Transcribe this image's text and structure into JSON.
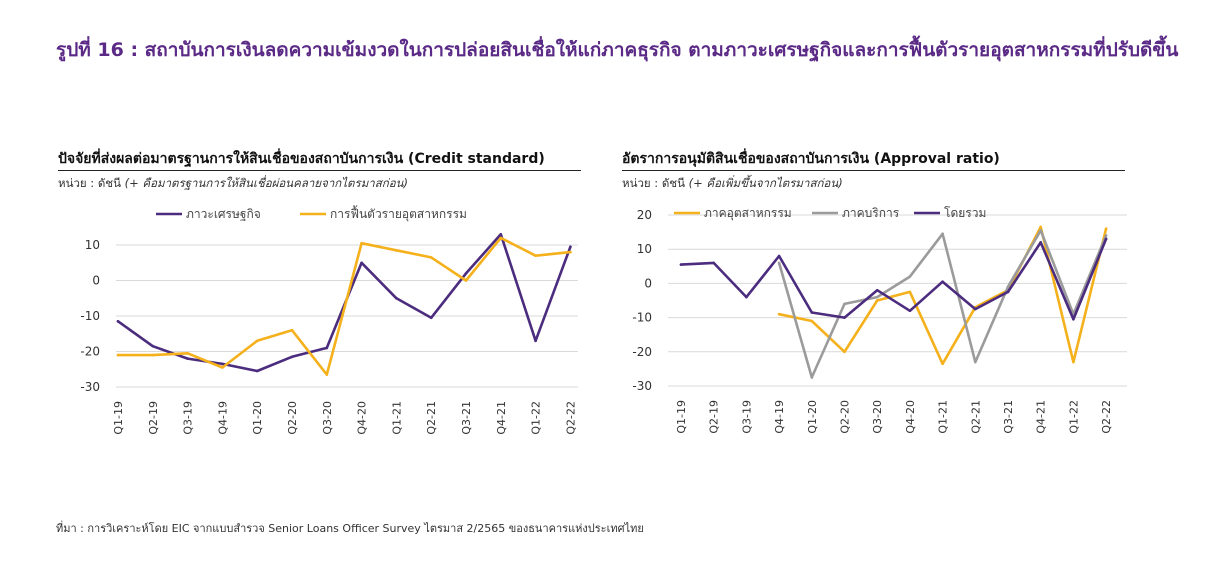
{
  "figure": {
    "title": "รูปที่ 16 : สถาบันการเงินลดความเข้มงวดในการปล่อยสินเชื่อให้แก่ภาคธุรกิจ ตามภาวะเศรษฐกิจและการฟื้นตัวรายอุตสาหกรรมที่ปรับดีขึ้น",
    "source": "ที่มา : การวิเคราะห์โดย EIC จากแบบสำรวจ Senior Loans Officer Survey ไตรมาส 2/2565 ของธนาคารแห่งประเทศไทย"
  },
  "colors": {
    "purple": "#4b2c7e",
    "orange": "#f5b11b",
    "gray": "#9b9b9b",
    "title": "#5b2a86",
    "grid": "#d9d9d9"
  },
  "chart_data": [
    {
      "type": "line",
      "title": "ปัจจัยที่ส่งผลต่อมาตรฐานการให้สินเชื่อของสถาบันการเงิน (Credit standard)",
      "unit": "หน่วย : ดัชนี",
      "note": "(+ คือมาตรฐานการให้สินเชื่อผ่อนคลายจากไตรมาสก่อน)",
      "categories": [
        "Q1-19",
        "Q2-19",
        "Q3-19",
        "Q4-19",
        "Q1-20",
        "Q2-20",
        "Q3-20",
        "Q4-20",
        "Q1-21",
        "Q2-21",
        "Q3-21",
        "Q4-21",
        "Q1-22",
        "Q2-22"
      ],
      "ylim": [
        -30,
        10
      ],
      "yticks": [
        10,
        0,
        -10,
        -20,
        -30
      ],
      "grid": "horizontal",
      "legend": "top",
      "series": [
        {
          "name": "ภาวะเศรษฐกิจ",
          "color": "#4b2c7e",
          "values": [
            -11.5,
            -18.5,
            -22,
            -23.5,
            -25.5,
            -21.5,
            -19,
            5,
            -5,
            -10.5,
            2,
            13,
            -17,
            9.5
          ]
        },
        {
          "name": "การฟื้นตัวรายอุตสาหกรรม",
          "color": "#f5b11b",
          "values": [
            -21,
            -21,
            -20.5,
            -24.5,
            -17,
            -14,
            -26.5,
            10.5,
            8.5,
            6.5,
            0,
            12,
            7,
            8
          ]
        }
      ]
    },
    {
      "type": "line",
      "title": "อัตราการอนุมัติสินเชื่อของสถาบันการเงิน (Approval ratio)",
      "unit": "หน่วย : ดัชนี",
      "note": "(+ คือเพิ่มขึ้นจากไตรมาสก่อน)",
      "categories": [
        "Q1-19",
        "Q2-19",
        "Q3-19",
        "Q4-19",
        "Q1-20",
        "Q2-20",
        "Q3-20",
        "Q4-20",
        "Q1-21",
        "Q2-21",
        "Q3-21",
        "Q4-21",
        "Q1-22",
        "Q2-22"
      ],
      "ylim": [
        -30,
        20
      ],
      "yticks": [
        20,
        10,
        0,
        -10,
        -20,
        -30
      ],
      "grid": "horizontal",
      "legend": "top",
      "series": [
        {
          "name": "ภาคอุตสาหกรรม",
          "color": "#f5b11b",
          "values": [
            null,
            null,
            null,
            -9,
            -11,
            -20,
            -5,
            -2.5,
            -23.5,
            -7,
            -2,
            16.5,
            -23,
            16
          ]
        },
        {
          "name": "ภาคบริการ",
          "color": "#9b9b9b",
          "values": [
            null,
            null,
            null,
            6,
            -27.5,
            -6,
            -4,
            2,
            14.5,
            -23,
            -1,
            15.5,
            -9,
            14
          ]
        },
        {
          "name": "โดยรวม",
          "color": "#4b2c7e",
          "values": [
            5.5,
            6,
            -4,
            8,
            -8.5,
            -10,
            -2,
            -8,
            0.5,
            -7.5,
            -2.5,
            12,
            -10.5,
            13
          ]
        }
      ]
    }
  ]
}
